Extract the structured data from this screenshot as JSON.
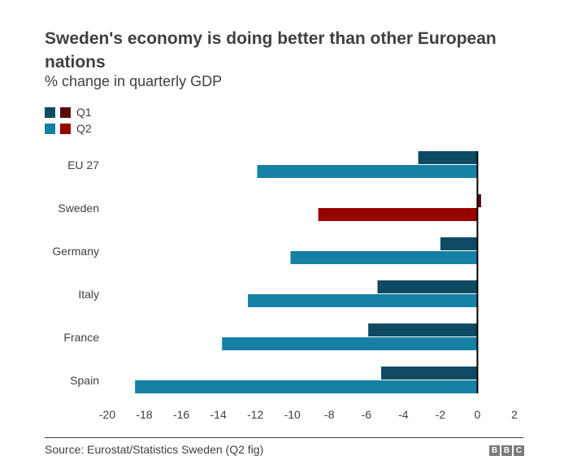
{
  "title": "Sweden's economy is doing better than other European nations",
  "subtitle": "% change in quarterly GDP",
  "legend": [
    {
      "label": "Q1",
      "colors": [
        "#0e4b62",
        "#5c0a0e"
      ]
    },
    {
      "label": "Q2",
      "colors": [
        "#1680a4",
        "#990000"
      ]
    }
  ],
  "source": "Source: Eurostat/Statistics Sweden (Q2 fig)",
  "logo": [
    "B",
    "B",
    "C"
  ],
  "colors": {
    "q1": "#0e4b62",
    "q2": "#1680a4",
    "q1_highlight": "#5c0a0e",
    "q2_highlight": "#990000",
    "zero_line": "#000000"
  },
  "chart_data": {
    "type": "bar",
    "orientation": "horizontal",
    "title": "Sweden's economy is doing better than other European nations",
    "subtitle": "% change in quarterly GDP",
    "xlabel": "",
    "ylabel": "",
    "categories": [
      "EU 27",
      "Sweden",
      "Germany",
      "Italy",
      "France",
      "Spain"
    ],
    "highlight": "Sweden",
    "series": [
      {
        "name": "Q1",
        "values": [
          -3.2,
          0.2,
          -2.0,
          -5.4,
          -5.9,
          -5.2
        ]
      },
      {
        "name": "Q2",
        "values": [
          -11.9,
          -8.6,
          -10.1,
          -12.4,
          -13.8,
          -18.5
        ]
      }
    ],
    "xlim": [
      -20,
      2
    ],
    "xticks": [
      -20,
      -18,
      -16,
      -14,
      -12,
      -10,
      -8,
      -6,
      -4,
      -2,
      0,
      2
    ],
    "grid": false,
    "legend_position": "top-left"
  }
}
